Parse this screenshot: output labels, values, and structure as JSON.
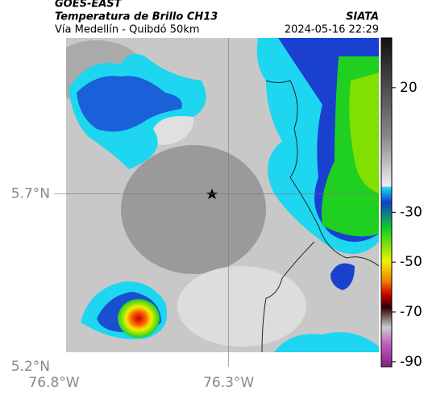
{
  "header": {
    "source": "GOES-EAST",
    "title": "Temperatura de Brillo CH13",
    "org": "SIATA",
    "subtitle": "Vía Medellín - Quibdó 50km",
    "datetime": "2024-05-16 22:29"
  },
  "map": {
    "latlim": [
      5.2,
      6.15
    ],
    "lonlim": [
      -76.8,
      -75.87
    ],
    "lat_ticks": [
      {
        "value": 5.7,
        "label": "5.7°N"
      },
      {
        "value": 5.2,
        "label": "5.2°N"
      }
    ],
    "lon_ticks": [
      {
        "value": -76.8,
        "label": "76.8°W"
      },
      {
        "value": -76.3,
        "label": "76.3°W"
      }
    ]
  },
  "colorbar": {
    "lim": [
      -92,
      40
    ],
    "ticks": [
      20,
      -30,
      -50,
      -70,
      -90
    ]
  }
}
